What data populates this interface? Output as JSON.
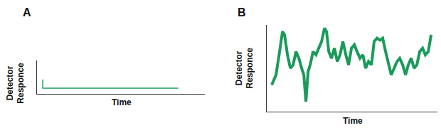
{
  "chart_data": [
    {
      "type": "line",
      "title": "A",
      "xlabel": "Time",
      "ylabel": "Detector Responce",
      "x": [
        3.4,
        3.4,
        84
      ],
      "values": [
        4.3,
        1.7,
        1.7
      ],
      "color": "#1a9a5a",
      "xlim": [
        0,
        100
      ],
      "ylim": [
        0,
        10
      ],
      "grid": false,
      "tick_labels": false
    },
    {
      "type": "line",
      "title": "B",
      "xlabel": "Time",
      "ylabel": "Detector Responce",
      "x": [
        2.9,
        5.4,
        7.5,
        9.2,
        10.4,
        12.1,
        13.8,
        15.4,
        17.1,
        18.8,
        20.4,
        21.7,
        22.9,
        24.2,
        25.4,
        27.1,
        28.8,
        30.4,
        32.1,
        33.8,
        35,
        36.3,
        37.9,
        39.6,
        41.3,
        42.9,
        44.6,
        46.3,
        47.9,
        49.6,
        51.3,
        52.9,
        54.6,
        56.3,
        57.9,
        59.6,
        61.3,
        62.9,
        64.6,
        66.3,
        67.9,
        69.6,
        71.3,
        72.9,
        74.6,
        76.3,
        77.9,
        79.6,
        81.3,
        82.9,
        84.6,
        86.3,
        87.9,
        89.6,
        91.3,
        92.9,
        94.6,
        96.3
      ],
      "values": [
        30.8,
        42.3,
        69.2,
        92.3,
        88.5,
        65.4,
        50,
        53.8,
        69.2,
        61.5,
        50,
        42.3,
        11.5,
        46.2,
        53.8,
        69.2,
        65.4,
        73.1,
        80.8,
        96.2,
        92.3,
        69.2,
        61.5,
        73.1,
        57.7,
        65.4,
        80.8,
        65.4,
        53.8,
        73.1,
        76.9,
        69.2,
        61.5,
        65.4,
        50,
        57.7,
        53.8,
        80.8,
        84.6,
        82.3,
        84.6,
        69.2,
        53.8,
        42.3,
        50,
        57.7,
        61.5,
        53.8,
        42.3,
        53.8,
        61.5,
        50,
        53.8,
        69.2,
        73.1,
        65.4,
        69.2,
        88.5
      ],
      "color": "#1a9a5a",
      "xlim": [
        0,
        100
      ],
      "ylim": [
        0,
        100
      ],
      "grid": false,
      "tick_labels": false
    }
  ]
}
